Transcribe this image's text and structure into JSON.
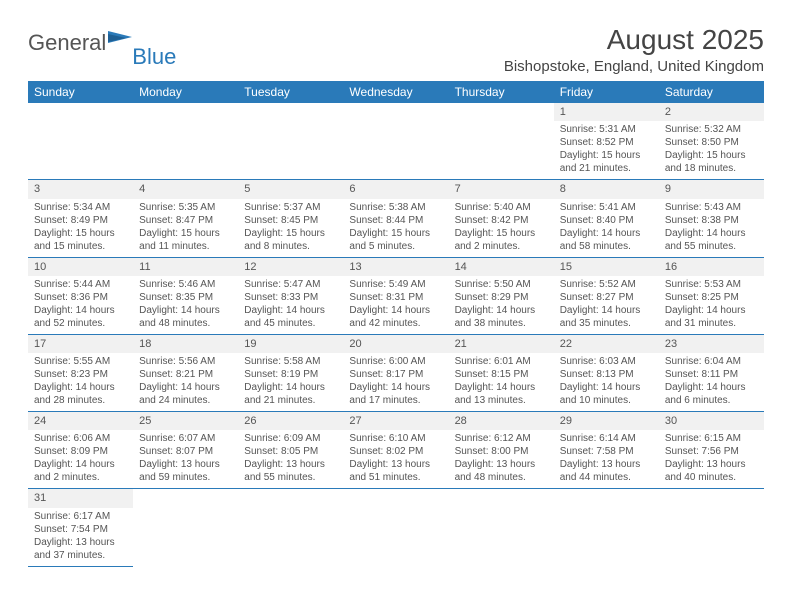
{
  "logo": {
    "general": "General",
    "blue": "Blue"
  },
  "title": "August 2025",
  "location": "Bishopstoke, England, United Kingdom",
  "headers": [
    "Sunday",
    "Monday",
    "Tuesday",
    "Wednesday",
    "Thursday",
    "Friday",
    "Saturday"
  ],
  "colors": {
    "header_bg": "#2a7ab9",
    "daynum_bg": "#f1f1f1",
    "border": "#2a7ab9",
    "text": "#555555",
    "title_text": "#444444"
  },
  "typography": {
    "title_fontsize": 28,
    "location_fontsize": 15,
    "header_fontsize": 12,
    "daynum_fontsize": 11,
    "cell_fontsize": 10
  },
  "weeks": [
    [
      {
        "day": "",
        "sunrise": "",
        "sunset": "",
        "daylight": ""
      },
      {
        "day": "",
        "sunrise": "",
        "sunset": "",
        "daylight": ""
      },
      {
        "day": "",
        "sunrise": "",
        "sunset": "",
        "daylight": ""
      },
      {
        "day": "",
        "sunrise": "",
        "sunset": "",
        "daylight": ""
      },
      {
        "day": "",
        "sunrise": "",
        "sunset": "",
        "daylight": ""
      },
      {
        "day": "1",
        "sunrise": "Sunrise: 5:31 AM",
        "sunset": "Sunset: 8:52 PM",
        "daylight": "Daylight: 15 hours and 21 minutes."
      },
      {
        "day": "2",
        "sunrise": "Sunrise: 5:32 AM",
        "sunset": "Sunset: 8:50 PM",
        "daylight": "Daylight: 15 hours and 18 minutes."
      }
    ],
    [
      {
        "day": "3",
        "sunrise": "Sunrise: 5:34 AM",
        "sunset": "Sunset: 8:49 PM",
        "daylight": "Daylight: 15 hours and 15 minutes."
      },
      {
        "day": "4",
        "sunrise": "Sunrise: 5:35 AM",
        "sunset": "Sunset: 8:47 PM",
        "daylight": "Daylight: 15 hours and 11 minutes."
      },
      {
        "day": "5",
        "sunrise": "Sunrise: 5:37 AM",
        "sunset": "Sunset: 8:45 PM",
        "daylight": "Daylight: 15 hours and 8 minutes."
      },
      {
        "day": "6",
        "sunrise": "Sunrise: 5:38 AM",
        "sunset": "Sunset: 8:44 PM",
        "daylight": "Daylight: 15 hours and 5 minutes."
      },
      {
        "day": "7",
        "sunrise": "Sunrise: 5:40 AM",
        "sunset": "Sunset: 8:42 PM",
        "daylight": "Daylight: 15 hours and 2 minutes."
      },
      {
        "day": "8",
        "sunrise": "Sunrise: 5:41 AM",
        "sunset": "Sunset: 8:40 PM",
        "daylight": "Daylight: 14 hours and 58 minutes."
      },
      {
        "day": "9",
        "sunrise": "Sunrise: 5:43 AM",
        "sunset": "Sunset: 8:38 PM",
        "daylight": "Daylight: 14 hours and 55 minutes."
      }
    ],
    [
      {
        "day": "10",
        "sunrise": "Sunrise: 5:44 AM",
        "sunset": "Sunset: 8:36 PM",
        "daylight": "Daylight: 14 hours and 52 minutes."
      },
      {
        "day": "11",
        "sunrise": "Sunrise: 5:46 AM",
        "sunset": "Sunset: 8:35 PM",
        "daylight": "Daylight: 14 hours and 48 minutes."
      },
      {
        "day": "12",
        "sunrise": "Sunrise: 5:47 AM",
        "sunset": "Sunset: 8:33 PM",
        "daylight": "Daylight: 14 hours and 45 minutes."
      },
      {
        "day": "13",
        "sunrise": "Sunrise: 5:49 AM",
        "sunset": "Sunset: 8:31 PM",
        "daylight": "Daylight: 14 hours and 42 minutes."
      },
      {
        "day": "14",
        "sunrise": "Sunrise: 5:50 AM",
        "sunset": "Sunset: 8:29 PM",
        "daylight": "Daylight: 14 hours and 38 minutes."
      },
      {
        "day": "15",
        "sunrise": "Sunrise: 5:52 AM",
        "sunset": "Sunset: 8:27 PM",
        "daylight": "Daylight: 14 hours and 35 minutes."
      },
      {
        "day": "16",
        "sunrise": "Sunrise: 5:53 AM",
        "sunset": "Sunset: 8:25 PM",
        "daylight": "Daylight: 14 hours and 31 minutes."
      }
    ],
    [
      {
        "day": "17",
        "sunrise": "Sunrise: 5:55 AM",
        "sunset": "Sunset: 8:23 PM",
        "daylight": "Daylight: 14 hours and 28 minutes."
      },
      {
        "day": "18",
        "sunrise": "Sunrise: 5:56 AM",
        "sunset": "Sunset: 8:21 PM",
        "daylight": "Daylight: 14 hours and 24 minutes."
      },
      {
        "day": "19",
        "sunrise": "Sunrise: 5:58 AM",
        "sunset": "Sunset: 8:19 PM",
        "daylight": "Daylight: 14 hours and 21 minutes."
      },
      {
        "day": "20",
        "sunrise": "Sunrise: 6:00 AM",
        "sunset": "Sunset: 8:17 PM",
        "daylight": "Daylight: 14 hours and 17 minutes."
      },
      {
        "day": "21",
        "sunrise": "Sunrise: 6:01 AM",
        "sunset": "Sunset: 8:15 PM",
        "daylight": "Daylight: 14 hours and 13 minutes."
      },
      {
        "day": "22",
        "sunrise": "Sunrise: 6:03 AM",
        "sunset": "Sunset: 8:13 PM",
        "daylight": "Daylight: 14 hours and 10 minutes."
      },
      {
        "day": "23",
        "sunrise": "Sunrise: 6:04 AM",
        "sunset": "Sunset: 8:11 PM",
        "daylight": "Daylight: 14 hours and 6 minutes."
      }
    ],
    [
      {
        "day": "24",
        "sunrise": "Sunrise: 6:06 AM",
        "sunset": "Sunset: 8:09 PM",
        "daylight": "Daylight: 14 hours and 2 minutes."
      },
      {
        "day": "25",
        "sunrise": "Sunrise: 6:07 AM",
        "sunset": "Sunset: 8:07 PM",
        "daylight": "Daylight: 13 hours and 59 minutes."
      },
      {
        "day": "26",
        "sunrise": "Sunrise: 6:09 AM",
        "sunset": "Sunset: 8:05 PM",
        "daylight": "Daylight: 13 hours and 55 minutes."
      },
      {
        "day": "27",
        "sunrise": "Sunrise: 6:10 AM",
        "sunset": "Sunset: 8:02 PM",
        "daylight": "Daylight: 13 hours and 51 minutes."
      },
      {
        "day": "28",
        "sunrise": "Sunrise: 6:12 AM",
        "sunset": "Sunset: 8:00 PM",
        "daylight": "Daylight: 13 hours and 48 minutes."
      },
      {
        "day": "29",
        "sunrise": "Sunrise: 6:14 AM",
        "sunset": "Sunset: 7:58 PM",
        "daylight": "Daylight: 13 hours and 44 minutes."
      },
      {
        "day": "30",
        "sunrise": "Sunrise: 6:15 AM",
        "sunset": "Sunset: 7:56 PM",
        "daylight": "Daylight: 13 hours and 40 minutes."
      }
    ],
    [
      {
        "day": "31",
        "sunrise": "Sunrise: 6:17 AM",
        "sunset": "Sunset: 7:54 PM",
        "daylight": "Daylight: 13 hours and 37 minutes."
      },
      {
        "day": "",
        "sunrise": "",
        "sunset": "",
        "daylight": ""
      },
      {
        "day": "",
        "sunrise": "",
        "sunset": "",
        "daylight": ""
      },
      {
        "day": "",
        "sunrise": "",
        "sunset": "",
        "daylight": ""
      },
      {
        "day": "",
        "sunrise": "",
        "sunset": "",
        "daylight": ""
      },
      {
        "day": "",
        "sunrise": "",
        "sunset": "",
        "daylight": ""
      },
      {
        "day": "",
        "sunrise": "",
        "sunset": "",
        "daylight": ""
      }
    ]
  ]
}
